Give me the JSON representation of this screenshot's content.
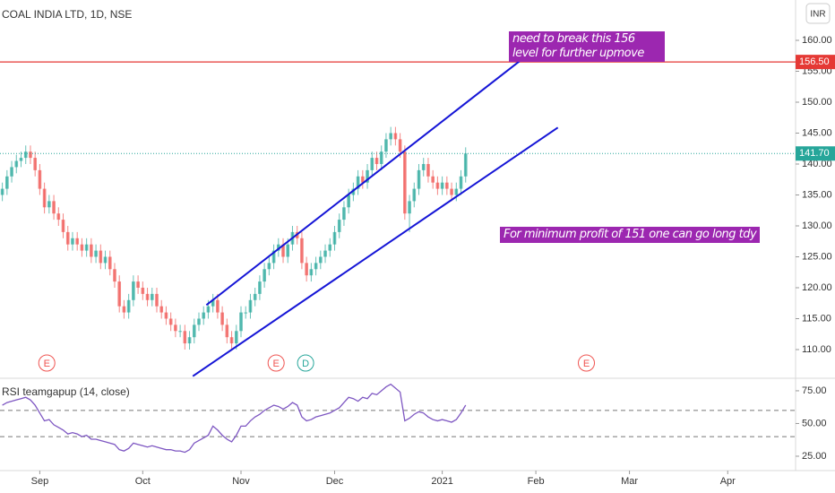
{
  "chart_data": [
    {
      "type": "candlestick",
      "title": "COAL INDIA LTD, 1D, NSE",
      "currency": "INR",
      "xlim": [
        -0.5,
        169.5
      ],
      "ylim": [
        105.65,
        166.52
      ],
      "yticks": [
        {
          "value": 110,
          "label": "110.00"
        },
        {
          "value": 115,
          "label": "115.00"
        },
        {
          "value": 120,
          "label": "120.00"
        },
        {
          "value": 125,
          "label": "125.00"
        },
        {
          "value": 130,
          "label": "130.00"
        },
        {
          "value": 135,
          "label": "135.00"
        },
        {
          "value": 140,
          "label": "140.00"
        },
        {
          "value": 145,
          "label": "145.00"
        },
        {
          "value": 150,
          "label": "150.00"
        },
        {
          "value": 155,
          "label": "155.00"
        },
        {
          "value": 160,
          "label": "160.00"
        }
      ],
      "up_color": "#26a69a",
      "down_color": "#ef5350",
      "open": [
        135,
        136,
        138,
        139.5,
        140.5,
        141,
        142,
        141,
        139,
        136,
        133,
        134,
        132,
        131,
        129,
        127,
        128,
        127,
        126,
        127,
        125,
        126,
        124,
        125,
        123,
        121,
        117,
        116,
        118,
        121,
        120,
        119,
        118,
        119,
        117,
        116,
        115,
        114,
        113,
        113,
        111,
        112,
        114,
        115,
        116,
        117,
        118,
        116,
        114,
        112,
        111,
        113,
        116,
        116,
        118,
        119,
        121,
        123,
        124,
        126,
        127,
        125,
        127,
        129,
        128,
        124,
        122,
        123,
        124,
        125,
        126,
        127,
        129,
        131,
        133,
        135,
        136,
        138,
        137,
        139,
        141,
        140,
        142,
        144,
        145,
        144,
        142,
        132,
        134,
        136,
        139,
        140,
        138,
        137,
        136,
        137,
        136,
        135,
        136,
        138
      ],
      "high": [
        137,
        139,
        140.5,
        141.5,
        142,
        143,
        143,
        142,
        140,
        137,
        135,
        135,
        133,
        132,
        130,
        129,
        129,
        128,
        128,
        128,
        127,
        127,
        126,
        126,
        124,
        122,
        118,
        119,
        122,
        122,
        121,
        120,
        120,
        120,
        118,
        117,
        116,
        115,
        114,
        114,
        113,
        115,
        116,
        117,
        118,
        119,
        119,
        117,
        115,
        113,
        114,
        117,
        117,
        119,
        120,
        122,
        124,
        125,
        127,
        128,
        128,
        128,
        130,
        130,
        129,
        125,
        124,
        125,
        126,
        127,
        128,
        130,
        132,
        134,
        136,
        137,
        139,
        139,
        140,
        142,
        142,
        143,
        145,
        146,
        146,
        145,
        143,
        135,
        137,
        140,
        141,
        141,
        139,
        138,
        138,
        138,
        137,
        137,
        139,
        142.7
      ],
      "low": [
        134,
        135,
        137,
        138.5,
        139.5,
        140,
        140,
        138,
        135,
        132,
        132,
        131,
        130,
        128,
        126,
        126,
        126,
        125,
        125,
        124,
        124,
        123,
        123,
        122,
        120,
        116,
        115,
        115,
        117,
        119,
        118,
        117,
        117,
        116,
        115,
        114,
        113,
        112,
        112,
        110,
        110,
        111,
        113,
        114,
        115,
        116,
        115,
        113,
        111,
        110,
        110,
        112,
        115,
        115,
        117,
        118,
        120,
        122,
        123,
        125,
        124,
        124,
        126,
        127,
        123,
        121,
        121,
        122,
        123,
        124,
        125,
        126,
        128,
        130,
        132,
        134,
        135,
        136,
        136,
        138,
        139,
        139,
        141,
        143,
        143,
        141,
        131,
        129,
        133,
        135,
        138,
        137,
        136,
        135,
        135,
        135,
        134,
        134,
        135,
        137
      ],
      "close": [
        136,
        138,
        139.5,
        140.5,
        141,
        142,
        141,
        139,
        136,
        133,
        134,
        132,
        131,
        129,
        127,
        128,
        127,
        126,
        127,
        125,
        126,
        124,
        125,
        123,
        121,
        117,
        116,
        118,
        121,
        120,
        119,
        118,
        119,
        117,
        116,
        115,
        114,
        113,
        113,
        111,
        112,
        114,
        115,
        116,
        117,
        118,
        116,
        114,
        112,
        111,
        113,
        116,
        116,
        118,
        119,
        121,
        123,
        124,
        126,
        127,
        125,
        127,
        129,
        128,
        124,
        122,
        123,
        124,
        125,
        126,
        127,
        129,
        131,
        133,
        135,
        136,
        138,
        137,
        139,
        141,
        140,
        142,
        144,
        145,
        144,
        142,
        132,
        134,
        136,
        139,
        140,
        138,
        137,
        136,
        137,
        136,
        135,
        136,
        138,
        141.7
      ],
      "last_price": {
        "value": 141.7,
        "label": "141.70",
        "color": "#26a69a"
      },
      "hline": {
        "value": 156.5,
        "label": "156.50",
        "color": "#e53935"
      },
      "trendlines": [
        {
          "color": "#1515d6",
          "x": [
            43.6,
            112.5
          ],
          "y": [
            117.2,
            157.8
          ]
        },
        {
          "color": "#1515d6",
          "x": [
            40.7,
            118.7
          ],
          "y": [
            105.7,
            145.9
          ]
        }
      ],
      "annotations": [
        "need to break this 156 level for further upmove",
        "For minimum profit of 151 one can go long tdy"
      ],
      "events": [
        {
          "label": "E",
          "x": 9.5,
          "color": "#ef5350"
        },
        {
          "label": "E",
          "x": 58.5,
          "color": "#ef5350"
        },
        {
          "label": "D",
          "x": 64.8,
          "color": "#26a69a"
        },
        {
          "label": "E",
          "x": 124.8,
          "color": "#ef5350"
        }
      ]
    },
    {
      "type": "line",
      "title": "RSI teamgapup (14, close)",
      "xlim": [
        -0.5,
        169.5
      ],
      "xticks": [
        {
          "value": 8,
          "label": "Sep"
        },
        {
          "value": 30,
          "label": "Oct"
        },
        {
          "value": 51,
          "label": "Nov"
        },
        {
          "value": 71,
          "label": "Dec"
        },
        {
          "value": 94,
          "label": "2021"
        },
        {
          "value": 114,
          "label": "Feb"
        },
        {
          "value": 134,
          "label": "Mar"
        },
        {
          "value": 155,
          "label": "Apr"
        }
      ],
      "ylim": [
        10.6,
        82.5
      ],
      "yticks": [
        {
          "value": 25,
          "label": "25.00"
        },
        {
          "value": 50,
          "label": "50.00"
        },
        {
          "value": 75,
          "label": "75.00"
        }
      ],
      "levels": [
        60,
        40
      ],
      "color": "#7e57c2",
      "values": [
        64,
        66,
        67,
        68,
        69,
        70,
        68,
        64,
        58,
        52,
        53,
        49,
        47,
        45,
        42,
        43,
        42,
        40,
        41,
        38,
        38,
        37,
        36,
        35,
        34,
        30,
        29,
        31,
        35,
        34,
        33,
        32,
        33,
        32,
        31,
        30,
        30,
        29,
        29,
        28,
        30,
        35,
        37,
        39,
        41,
        48,
        45,
        41,
        38,
        36,
        41,
        48,
        48,
        52,
        55,
        57,
        60,
        62,
        64,
        63,
        61,
        63,
        66,
        64,
        55,
        52,
        53,
        55,
        56,
        57,
        58,
        60,
        62,
        66,
        70,
        69,
        67,
        70,
        69,
        73,
        72,
        75,
        78,
        80,
        77,
        74,
        52,
        54,
        57,
        59,
        58,
        55,
        53,
        52,
        53,
        52,
        51,
        53,
        58,
        64
      ]
    }
  ]
}
